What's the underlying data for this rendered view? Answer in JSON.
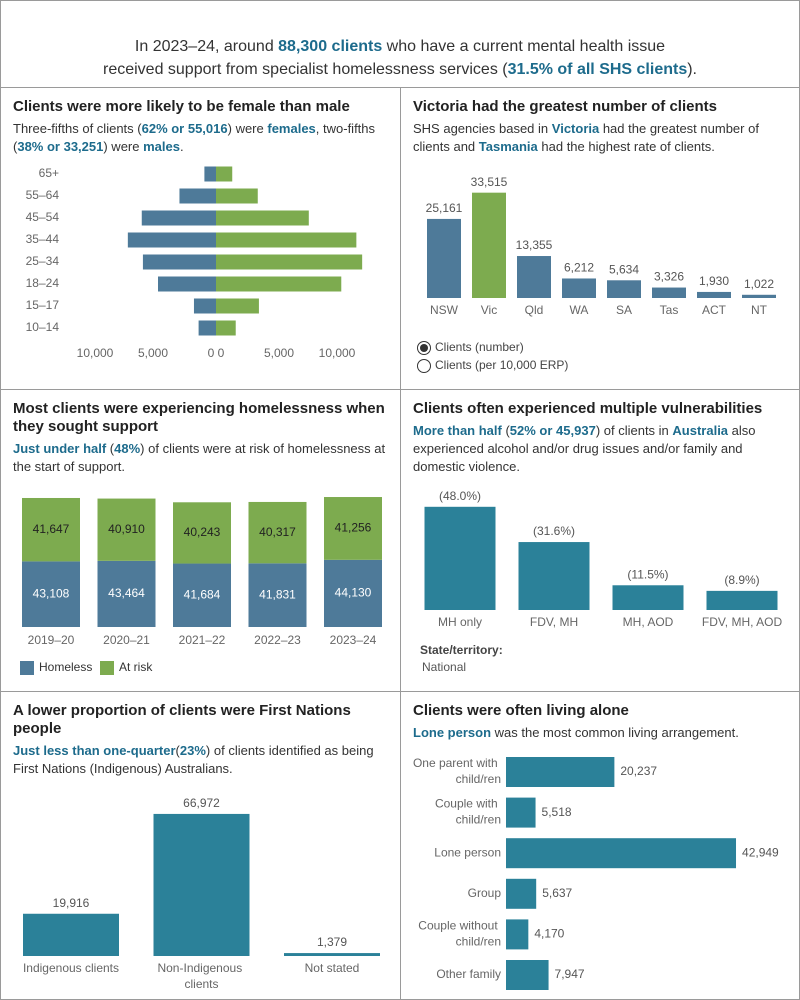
{
  "header": {
    "lines": [
      [
        {
          "text": "In 2023–24, around "
        },
        {
          "text": "88,300 clients",
          "em": true
        },
        {
          "text": " who have a current mental health issue"
        }
      ],
      [
        {
          "text": "received support from specialist homelessness services ("
        },
        {
          "text": "31.5% of all SHS clients",
          "em": true
        },
        {
          "text": ")."
        }
      ]
    ]
  },
  "chart_data": [
    {
      "type": "pyramid",
      "title": "Clients were more likely to be female than male",
      "subtitle": [
        {
          "text": "Three-fifths of clients ("
        },
        {
          "text": "62% or 55,016",
          "em": true
        },
        {
          "text": ") were "
        },
        {
          "text": "females",
          "em": true
        },
        {
          "text": ", two-fifths ("
        },
        {
          "text": "38% or 33,251",
          "em": true
        },
        {
          "text": ") were "
        },
        {
          "text": "males",
          "em": true
        },
        {
          "text": "."
        }
      ],
      "categories": [
        "65+",
        "55–64",
        "45–54",
        "35–44",
        "25–34",
        "18–24",
        "15–17",
        "10–14"
      ],
      "series": [
        {
          "side": "left",
          "color": "#4e7a99",
          "values": [
            1000,
            3150,
            6400,
            7600,
            6300,
            5000,
            1900,
            1500
          ]
        },
        {
          "side": "right",
          "color": "#7dab4f",
          "values": [
            1400,
            3600,
            8000,
            12100,
            12600,
            10800,
            3700,
            1700
          ]
        }
      ],
      "xlim": [
        0,
        10000
      ],
      "xticks": [
        {
          "value": 10000,
          "label": "10,000"
        },
        {
          "value": 5000,
          "label": "5,000"
        },
        0
      ]
    },
    {
      "type": "bar",
      "title": "Victoria had the greatest number of clients",
      "subtitle": [
        {
          "text": "SHS agencies based in "
        },
        {
          "text": "Victoria",
          "em": true
        },
        {
          "text": " had the greatest number of clients and "
        },
        {
          "text": "Tasmania",
          "em": true
        },
        {
          "text": " had the highest rate of clients."
        }
      ],
      "categories": [
        "NSW",
        "Vic",
        "Qld",
        "WA",
        "SA",
        "Tas",
        "ACT",
        "NT"
      ],
      "values": [
        25161,
        33515,
        13355,
        6212,
        5634,
        3326,
        1930,
        1022
      ],
      "value_labels": [
        "25,161",
        "33,515",
        "13,355",
        "6,212",
        "5,634",
        "3,326",
        "1,930",
        "1,022"
      ],
      "colors": [
        "#4e7a99",
        "#7dab4f",
        "#4e7a99",
        "#4e7a99",
        "#4e7a99",
        "#4e7a99",
        "#4e7a99",
        "#4e7a99"
      ],
      "ylim": [
        0,
        35000
      ],
      "options": [
        "Clients (number)",
        "Clients (per 10,000 ERP)"
      ],
      "selected": 0
    },
    {
      "type": "stacked_bar",
      "title": "Most clients were experiencing homelessness when they sought support",
      "subtitle": [
        {
          "text": "Just under half",
          "em": true
        },
        {
          "text": " ("
        },
        {
          "text": "48%",
          "em": true
        },
        {
          "text": ") of clients were at risk of homelessness at the start of support."
        }
      ],
      "categories": [
        "2019–20",
        "2020–21",
        "2021–22",
        "2022–23",
        "2023–24"
      ],
      "series": [
        {
          "name": "Homeless",
          "color": "#4e7a99",
          "label_color": "#ffffff",
          "values": [
            43108,
            43464,
            41684,
            41831,
            44130
          ],
          "value_labels": [
            "43,108",
            "43,464",
            "41,684",
            "41,831",
            "44,130"
          ]
        },
        {
          "name": "At risk",
          "color": "#7dab4f",
          "label_color": "#222222",
          "values": [
            41647,
            40910,
            40243,
            40317,
            41256
          ],
          "value_labels": [
            "41,647",
            "40,910",
            "40,243",
            "40,317",
            "41,256"
          ]
        }
      ],
      "ylim": [
        0,
        90000
      ],
      "legend": "bottom"
    },
    {
      "type": "bar",
      "title": "Clients often experienced multiple vulnerabilities",
      "subtitle": [
        {
          "text": "More than half",
          "em": true
        },
        {
          "text": " ("
        },
        {
          "text": "52% or 45,937",
          "em": true
        },
        {
          "text": ") of clients in "
        },
        {
          "text": "Australia",
          "em": true
        },
        {
          "text": " also experienced alcohol and/or drug issues and/or family and domestic violence."
        }
      ],
      "categories": [
        "MH only",
        "FDV, MH",
        "MH, AOD",
        "FDV, MH, AOD"
      ],
      "values": [
        48.0,
        31.6,
        11.5,
        8.9
      ],
      "value_labels": [
        "(48.0%)",
        "(31.6%)",
        "(11.5%)",
        "(8.9%)"
      ],
      "color": "#2b8199",
      "ylim": [
        0,
        50
      ],
      "filter": {
        "label": "State/territory:",
        "value": "National"
      }
    },
    {
      "type": "bar",
      "title": "A lower proportion of clients were First Nations people",
      "subtitle": [
        {
          "text": "Just less than one-quarter",
          "em": true
        },
        {
          "text": "("
        },
        {
          "text": "23%",
          "em": true
        },
        {
          "text": ") of clients identified as being First Nations (Indigenous) Australians."
        }
      ],
      "categories": [
        "Indigenous clients",
        "Non-Indigenous clients",
        "Not stated"
      ],
      "values": [
        19916,
        66972,
        1379
      ],
      "value_labels": [
        "19,916",
        "66,972",
        "1,379"
      ],
      "color": "#2b8199",
      "ylim": [
        0,
        70000
      ]
    },
    {
      "type": "hbar",
      "title": "Clients were often living alone",
      "subtitle": [
        {
          "text": "Lone person",
          "em": true
        },
        {
          "text": " was the most common living arrangement."
        }
      ],
      "categories": [
        "One parent with child/ren",
        "Couple with child/ren",
        "Lone person",
        "Group",
        "Couple without child/ren",
        "Other family"
      ],
      "values": [
        20237,
        5518,
        42949,
        5637,
        4170,
        7947
      ],
      "value_labels": [
        "20,237",
        "5,518",
        "42,949",
        "5,637",
        "4,170",
        "7,947"
      ],
      "color": "#2b8199",
      "xlim": [
        0,
        45000
      ]
    }
  ]
}
